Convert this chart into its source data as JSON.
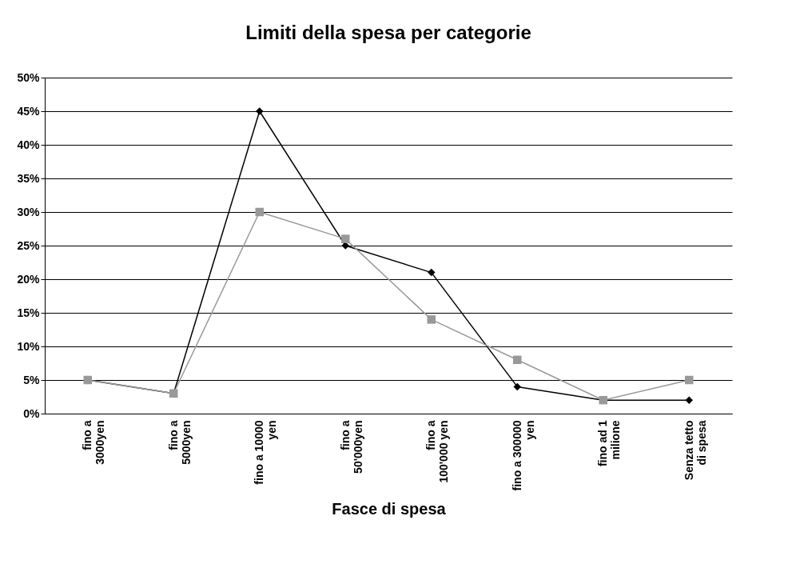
{
  "chart_data": {
    "type": "line",
    "title": "Limiti della spesa per categorie",
    "xlabel": "Fasce di spesa",
    "categories": [
      "fino a\n3000yen",
      "fino a\n5000yen",
      "fino a 10000\nyen",
      "fino a\n50'000yen",
      "fino a\n100'000 yen",
      "fino a 300000\nyen",
      "fino ad 1\nmilione",
      "Senza tetto\ndi spesa"
    ],
    "series": [
      {
        "color": "#000000",
        "marker": "diamond",
        "values": [
          5,
          3,
          45,
          25,
          21,
          4,
          2,
          2
        ]
      },
      {
        "color": "#999999",
        "marker": "square",
        "values": [
          5,
          3,
          30,
          26,
          14,
          8,
          2,
          5
        ]
      }
    ],
    "ylim": [
      0,
      50
    ],
    "yticks": [
      {
        "value": 0,
        "label": "0%"
      },
      {
        "value": 5,
        "label": "5%"
      },
      {
        "value": 10,
        "label": "10%"
      },
      {
        "value": 15,
        "label": "15%"
      },
      {
        "value": 20,
        "label": "20%"
      },
      {
        "value": 25,
        "label": "25%"
      },
      {
        "value": 30,
        "label": "30%"
      },
      {
        "value": 35,
        "label": "35%"
      },
      {
        "value": 40,
        "label": "40%"
      },
      {
        "value": 45,
        "label": "45%"
      },
      {
        "value": 50,
        "label": "50%"
      }
    ],
    "grid": "y"
  }
}
